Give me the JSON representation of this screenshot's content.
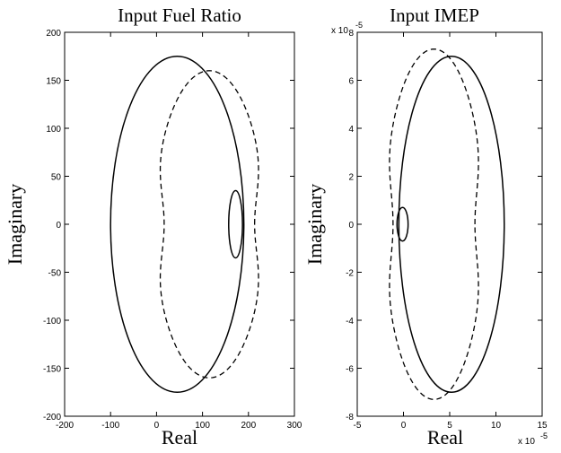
{
  "chart_data": [
    {
      "type": "line",
      "title": "Input Fuel Ratio",
      "xlabel": "Real",
      "ylabel": "Imaginary",
      "xlim": [
        -200,
        300
      ],
      "ylim": [
        -200,
        200
      ],
      "xticks": [
        -200,
        -100,
        0,
        100,
        200,
        300
      ],
      "yticks": [
        200,
        150,
        100,
        50,
        0,
        -50,
        -100,
        -150,
        -200
      ],
      "x_multiplier_label": "",
      "y_multiplier_label": "",
      "grid": false,
      "series": [
        {
          "style": "solid",
          "shape": "ellipse",
          "cx": 45,
          "cy": 0,
          "rx": 145,
          "ry": 175
        },
        {
          "style": "solid",
          "shape": "ellipse",
          "cx": 172,
          "cy": 0,
          "rx": 15,
          "ry": 35
        },
        {
          "style": "dashed",
          "shape": "cardioid-loop",
          "cx": 115,
          "cy": 0,
          "rx": 120,
          "ry": 160
        }
      ]
    },
    {
      "type": "line",
      "title": "Input IMEP",
      "xlabel": "Real",
      "ylabel": "Imaginary",
      "xlim": [
        -5,
        15
      ],
      "ylim": [
        -8,
        8
      ],
      "xticks": [
        -5,
        0,
        5,
        10,
        15
      ],
      "yticks": [
        8,
        6,
        4,
        2,
        0,
        -2,
        -4,
        -6,
        -8
      ],
      "x_multiplier_label": "x 10",
      "x_multiplier_exp": "-5",
      "y_multiplier_label": "x 10",
      "y_multiplier_exp": "-5",
      "grid": false,
      "series": [
        {
          "style": "solid",
          "shape": "ellipse",
          "cx": 5.2,
          "cy": 0,
          "rx": 5.7,
          "ry": 7
        },
        {
          "style": "solid",
          "shape": "ellipse",
          "cx": -0.1,
          "cy": 0,
          "rx": 0.6,
          "ry": 0.7
        },
        {
          "style": "dashed",
          "shape": "cardioid-loop",
          "cx": 3.3,
          "cy": 0,
          "rx": 5.4,
          "ry": 7.3
        }
      ]
    }
  ]
}
